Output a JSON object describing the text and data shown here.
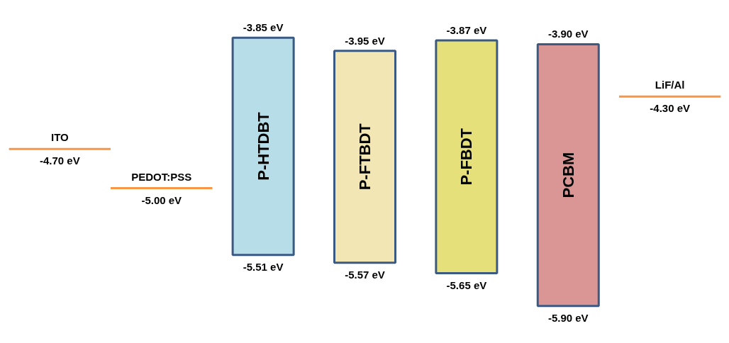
{
  "chart_data": {
    "type": "other",
    "categories": [
      "ITO",
      "PEDOT:PSS",
      "P-HTDBT",
      "P-FTBDT",
      "P-FBDT",
      "PCBM",
      "LiF/Al"
    ],
    "series": [
      {
        "values": [
          -4.7,
          -5.0,
          -3.85,
          -3.95,
          -3.87,
          -3.9,
          -4.3
        ],
        "value_labels": [
          "-4.70 eV",
          "-5.00 eV",
          "-3.85 eV",
          "-3.95 eV",
          "-3.87 eV",
          "-3.90 eV",
          "-4.30 eV"
        ]
      },
      {
        "values": [
          null,
          null,
          -5.51,
          -5.57,
          -5.65,
          -5.9,
          null
        ],
        "value_labels": [
          null,
          null,
          "-5.51 eV",
          "-5.57 eV",
          "-5.65 eV",
          "-5.90 eV",
          null
        ]
      }
    ],
    "colors": [
      "#f79646",
      "#f79646",
      "#b7dde8",
      "#f2e6b4",
      "#e5e07a",
      "#d99694",
      "#f79646"
    ]
  }
}
